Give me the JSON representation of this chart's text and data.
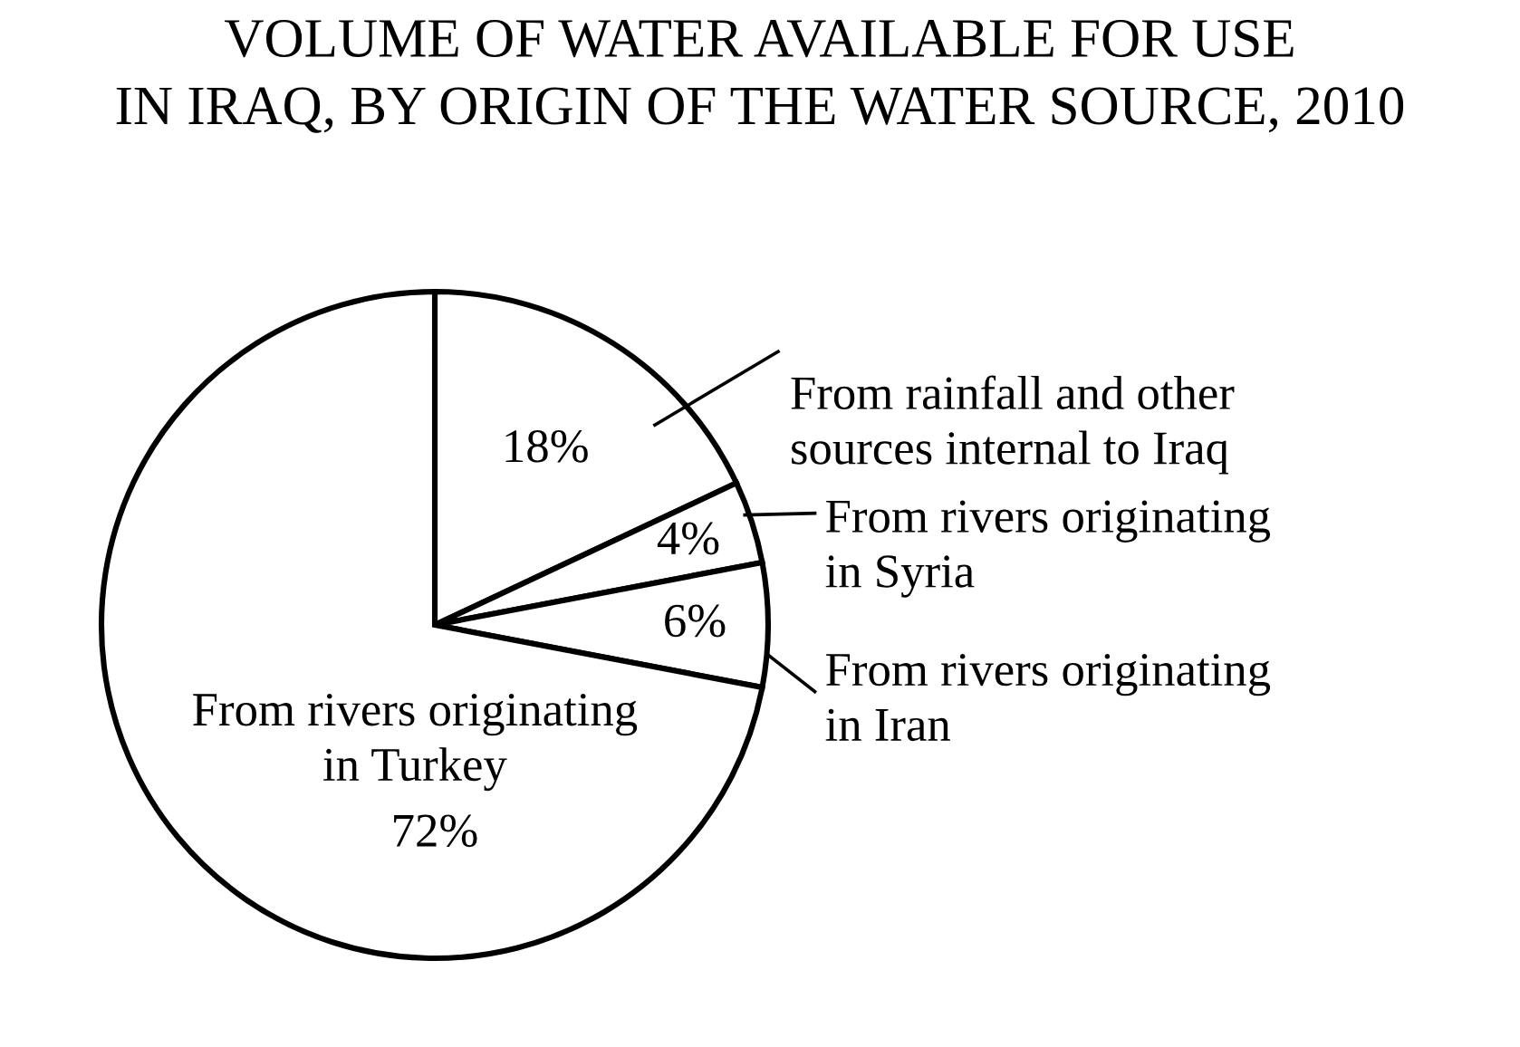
{
  "chart_data": {
    "type": "pie",
    "title": "VOLUME OF WATER AVAILABLE FOR USE\nIN IRAQ, BY ORIGIN OF THE WATER SOURCE, 2010",
    "categories": [
      "From rainfall and other\nsources internal to Iraq",
      "From rivers originating\nin Syria",
      "From rivers originating\nin Iran",
      "From rivers originating\nin Turkey"
    ],
    "values": [
      18,
      4,
      6,
      72
    ],
    "value_labels": [
      "18%",
      "4%",
      "6%",
      "72%"
    ],
    "colors": [
      "#ffffff",
      "#ffffff",
      "#ffffff",
      "#ffffff"
    ]
  }
}
